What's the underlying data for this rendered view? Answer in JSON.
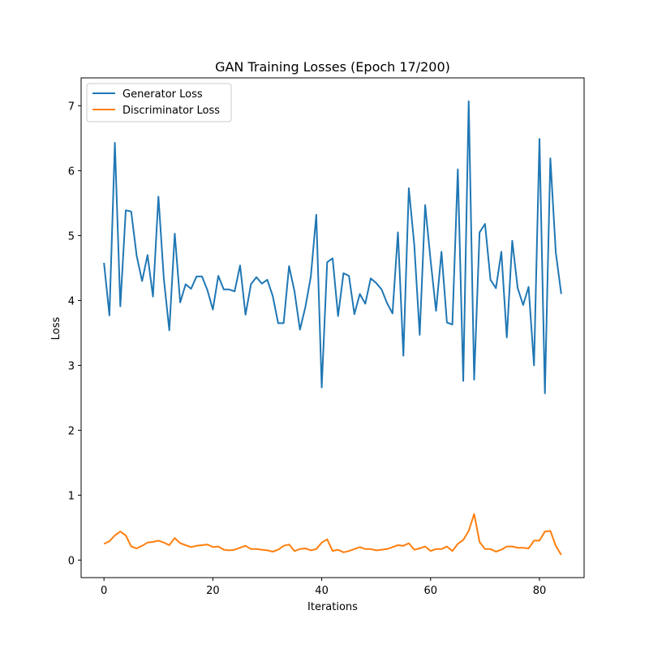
{
  "chart_data": {
    "type": "line",
    "title": "GAN Training Losses (Epoch 17/200)",
    "xlabel": "Iterations",
    "ylabel": "Loss",
    "xlim": [
      -4.2,
      88.2
    ],
    "ylim": [
      -0.27,
      7.43
    ],
    "xticks": [
      0,
      20,
      40,
      60,
      80
    ],
    "yticks": [
      0,
      1,
      2,
      3,
      4,
      5,
      6,
      7
    ],
    "legend_position": "top-left",
    "grid": false,
    "series": [
      {
        "name": "Generator Loss",
        "color": "#1f77b4",
        "values": [
          4.58,
          3.77,
          6.43,
          3.91,
          5.39,
          5.37,
          4.69,
          4.3,
          4.7,
          4.06,
          5.6,
          4.33,
          3.54,
          5.03,
          3.97,
          4.25,
          4.18,
          4.37,
          4.37,
          4.16,
          3.86,
          4.38,
          4.17,
          4.17,
          4.14,
          4.54,
          3.78,
          4.25,
          4.36,
          4.26,
          4.32,
          4.07,
          3.65,
          3.65,
          4.53,
          4.14,
          3.55,
          3.9,
          4.37,
          5.32,
          2.66,
          4.59,
          4.65,
          3.76,
          4.42,
          4.38,
          3.79,
          4.1,
          3.95,
          4.34,
          4.27,
          4.17,
          3.96,
          3.8,
          5.05,
          3.15,
          5.73,
          4.86,
          3.47,
          5.47,
          4.62,
          3.84,
          4.75,
          3.66,
          3.63,
          6.02,
          2.76,
          7.07,
          2.78,
          5.05,
          5.18,
          4.32,
          4.19,
          4.75,
          3.43,
          4.92,
          4.19,
          3.93,
          4.21,
          3.0,
          6.49,
          2.57,
          6.19,
          4.74,
          4.1
        ]
      },
      {
        "name": "Discriminator Loss",
        "color": "#ff7f0e",
        "values": [
          0.25,
          0.29,
          0.38,
          0.44,
          0.38,
          0.21,
          0.18,
          0.22,
          0.27,
          0.28,
          0.3,
          0.27,
          0.23,
          0.34,
          0.26,
          0.23,
          0.2,
          0.22,
          0.23,
          0.24,
          0.2,
          0.21,
          0.16,
          0.15,
          0.16,
          0.19,
          0.22,
          0.17,
          0.17,
          0.16,
          0.15,
          0.13,
          0.16,
          0.22,
          0.24,
          0.14,
          0.17,
          0.18,
          0.15,
          0.17,
          0.27,
          0.32,
          0.14,
          0.16,
          0.12,
          0.14,
          0.17,
          0.2,
          0.17,
          0.17,
          0.15,
          0.16,
          0.17,
          0.2,
          0.23,
          0.22,
          0.26,
          0.16,
          0.18,
          0.21,
          0.14,
          0.17,
          0.17,
          0.21,
          0.14,
          0.25,
          0.31,
          0.45,
          0.71,
          0.28,
          0.17,
          0.17,
          0.13,
          0.16,
          0.21,
          0.21,
          0.19,
          0.19,
          0.18,
          0.3,
          0.3,
          0.44,
          0.45,
          0.22,
          0.08
        ]
      }
    ]
  }
}
